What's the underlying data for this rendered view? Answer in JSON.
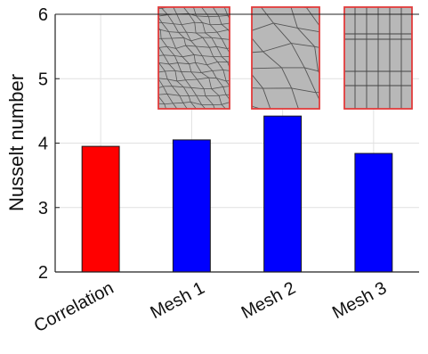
{
  "chart_data": {
    "type": "bar",
    "title": "",
    "xlabel": "",
    "ylabel": "Nusselt number",
    "categories": [
      "Correlation",
      "Mesh 1",
      "Mesh 2",
      "Mesh 3"
    ],
    "values": [
      3.95,
      4.05,
      4.42,
      3.84
    ],
    "colors": [
      "#ff0000",
      "#0000ff",
      "#0000ff",
      "#0000ff"
    ],
    "ylim": [
      2,
      6
    ],
    "yticks": [
      "2",
      "3",
      "4",
      "5",
      "6"
    ],
    "grid": true,
    "legend": "none"
  },
  "colors": {
    "inset_border": "#e23b3b",
    "inset_fill": "#b8b8b8",
    "inset_line": "#555555",
    "grid": "#e1e1e1"
  },
  "insets": [
    {
      "name": "mesh-1-polyhedral-fine-icon",
      "category": "Mesh 1"
    },
    {
      "name": "mesh-2-polyhedral-coarse-icon",
      "category": "Mesh 2"
    },
    {
      "name": "mesh-3-structured-icon",
      "category": "Mesh 3"
    }
  ]
}
